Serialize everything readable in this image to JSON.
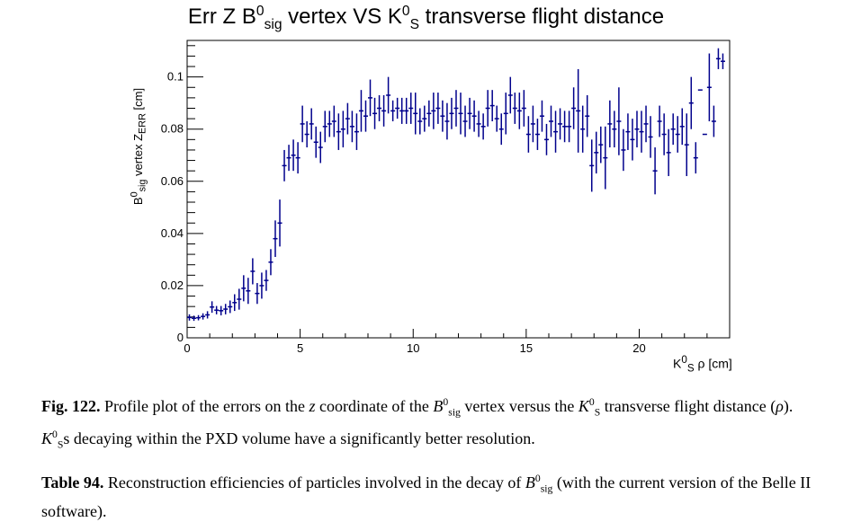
{
  "figure_caption": {
    "label": "Fig. 122.",
    "text_a": "Profile plot of the errors on the ",
    "text_b": " coordinate of the ",
    "text_c": " vertex versus the ",
    "text_d": " transverse flight distance (",
    "text_e": "). ",
    "text_f": "s decaying within the PXD volume have a significantly better resolution."
  },
  "table_caption": {
    "label": "Table 94.",
    "text_a": "Reconstruction efficiencies of particles involved in the decay of ",
    "text_b": " (with the current version of the Belle II software)."
  },
  "colors": {
    "marker": "#00008c",
    "axis": "#000000",
    "background": "#ffffff"
  },
  "chart_data": {
    "type": "scatter",
    "title": "Err Z B0sig vertex VS K0S transverse flight distance",
    "title_parts": {
      "a": "Err Z B",
      "b": "0",
      "c": "sig",
      "d": " vertex VS K",
      "e": "0",
      "f": "S",
      "g": " transverse flight distance"
    },
    "xlabel": "K0S ρ [cm]",
    "xlabel_parts": {
      "a": "K",
      "b": "0",
      "c": "S",
      "d": " ρ [cm]"
    },
    "ylabel": "B0sig vertex ZERR [cm]",
    "ylabel_parts": {
      "a": "B",
      "b": "0",
      "c": "sig",
      "d": " vertex Z",
      "e": "ERR",
      "f": " [cm]"
    },
    "xlim": [
      0,
      24
    ],
    "ylim": [
      0,
      0.114
    ],
    "x_ticks": [
      {
        "value": 0,
        "label": "0"
      },
      {
        "value": 5,
        "label": "5"
      },
      {
        "value": 10,
        "label": "10"
      },
      {
        "value": 15,
        "label": "15"
      },
      {
        "value": 20,
        "label": "20"
      }
    ],
    "y_ticks": [
      {
        "value": 0,
        "label": "0"
      },
      {
        "value": 0.02,
        "label": "0.02"
      },
      {
        "value": 0.04,
        "label": "0.04"
      },
      {
        "value": 0.06,
        "label": "0.06"
      },
      {
        "value": 0.08,
        "label": "0.08"
      },
      {
        "value": 0.1,
        "label": "0.1"
      }
    ],
    "bin_width": 0.2,
    "points": [
      {
        "x": 0.1,
        "y": 0.0078,
        "err": 0.0012
      },
      {
        "x": 0.3,
        "y": 0.0075,
        "err": 0.001
      },
      {
        "x": 0.5,
        "y": 0.0077,
        "err": 0.001
      },
      {
        "x": 0.7,
        "y": 0.0082,
        "err": 0.0012
      },
      {
        "x": 0.9,
        "y": 0.0088,
        "err": 0.0014
      },
      {
        "x": 1.1,
        "y": 0.0118,
        "err": 0.0022
      },
      {
        "x": 1.3,
        "y": 0.0106,
        "err": 0.0016
      },
      {
        "x": 1.5,
        "y": 0.0104,
        "err": 0.0018
      },
      {
        "x": 1.7,
        "y": 0.011,
        "err": 0.002
      },
      {
        "x": 1.9,
        "y": 0.0119,
        "err": 0.0024
      },
      {
        "x": 2.1,
        "y": 0.0135,
        "err": 0.0032
      },
      {
        "x": 2.3,
        "y": 0.0148,
        "err": 0.004
      },
      {
        "x": 2.5,
        "y": 0.019,
        "err": 0.005
      },
      {
        "x": 2.7,
        "y": 0.018,
        "err": 0.005
      },
      {
        "x": 2.9,
        "y": 0.0255,
        "err": 0.005
      },
      {
        "x": 3.1,
        "y": 0.017,
        "err": 0.004
      },
      {
        "x": 3.3,
        "y": 0.02,
        "err": 0.005
      },
      {
        "x": 3.5,
        "y": 0.022,
        "err": 0.004
      },
      {
        "x": 3.7,
        "y": 0.029,
        "err": 0.005
      },
      {
        "x": 3.9,
        "y": 0.038,
        "err": 0.007
      },
      {
        "x": 4.1,
        "y": 0.044,
        "err": 0.009
      },
      {
        "x": 4.3,
        "y": 0.066,
        "err": 0.006
      },
      {
        "x": 4.5,
        "y": 0.069,
        "err": 0.005
      },
      {
        "x": 4.7,
        "y": 0.07,
        "err": 0.006
      },
      {
        "x": 4.9,
        "y": 0.069,
        "err": 0.006
      },
      {
        "x": 5.1,
        "y": 0.082,
        "err": 0.007
      },
      {
        "x": 5.3,
        "y": 0.078,
        "err": 0.005
      },
      {
        "x": 5.5,
        "y": 0.082,
        "err": 0.006
      },
      {
        "x": 5.7,
        "y": 0.075,
        "err": 0.006
      },
      {
        "x": 5.9,
        "y": 0.073,
        "err": 0.006
      },
      {
        "x": 6.1,
        "y": 0.081,
        "err": 0.006
      },
      {
        "x": 6.3,
        "y": 0.082,
        "err": 0.005
      },
      {
        "x": 6.5,
        "y": 0.083,
        "err": 0.006
      },
      {
        "x": 6.7,
        "y": 0.079,
        "err": 0.007
      },
      {
        "x": 6.9,
        "y": 0.08,
        "err": 0.007
      },
      {
        "x": 7.1,
        "y": 0.084,
        "err": 0.006
      },
      {
        "x": 7.3,
        "y": 0.081,
        "err": 0.006
      },
      {
        "x": 7.5,
        "y": 0.079,
        "err": 0.007
      },
      {
        "x": 7.7,
        "y": 0.087,
        "err": 0.008
      },
      {
        "x": 7.9,
        "y": 0.085,
        "err": 0.006
      },
      {
        "x": 8.1,
        "y": 0.092,
        "err": 0.007
      },
      {
        "x": 8.3,
        "y": 0.086,
        "err": 0.006
      },
      {
        "x": 8.5,
        "y": 0.088,
        "err": 0.005
      },
      {
        "x": 8.7,
        "y": 0.087,
        "err": 0.006
      },
      {
        "x": 8.9,
        "y": 0.093,
        "err": 0.007
      },
      {
        "x": 9.1,
        "y": 0.087,
        "err": 0.004
      },
      {
        "x": 9.3,
        "y": 0.088,
        "err": 0.004
      },
      {
        "x": 9.5,
        "y": 0.087,
        "err": 0.005
      },
      {
        "x": 9.7,
        "y": 0.087,
        "err": 0.005
      },
      {
        "x": 9.9,
        "y": 0.088,
        "err": 0.006
      },
      {
        "x": 10.1,
        "y": 0.086,
        "err": 0.008
      },
      {
        "x": 10.3,
        "y": 0.083,
        "err": 0.005
      },
      {
        "x": 10.5,
        "y": 0.084,
        "err": 0.005
      },
      {
        "x": 10.7,
        "y": 0.086,
        "err": 0.005
      },
      {
        "x": 10.9,
        "y": 0.087,
        "err": 0.007
      },
      {
        "x": 11.1,
        "y": 0.088,
        "err": 0.006
      },
      {
        "x": 11.3,
        "y": 0.085,
        "err": 0.006
      },
      {
        "x": 11.5,
        "y": 0.083,
        "err": 0.007
      },
      {
        "x": 11.7,
        "y": 0.086,
        "err": 0.006
      },
      {
        "x": 11.9,
        "y": 0.088,
        "err": 0.007
      },
      {
        "x": 12.1,
        "y": 0.086,
        "err": 0.008
      },
      {
        "x": 12.3,
        "y": 0.083,
        "err": 0.006
      },
      {
        "x": 12.5,
        "y": 0.086,
        "err": 0.006
      },
      {
        "x": 12.7,
        "y": 0.085,
        "err": 0.006
      },
      {
        "x": 12.9,
        "y": 0.082,
        "err": 0.005
      },
      {
        "x": 13.1,
        "y": 0.081,
        "err": 0.005
      },
      {
        "x": 13.3,
        "y": 0.088,
        "err": 0.007
      },
      {
        "x": 13.5,
        "y": 0.089,
        "err": 0.006
      },
      {
        "x": 13.7,
        "y": 0.084,
        "err": 0.005
      },
      {
        "x": 13.9,
        "y": 0.08,
        "err": 0.006
      },
      {
        "x": 14.1,
        "y": 0.086,
        "err": 0.008
      },
      {
        "x": 14.3,
        "y": 0.093,
        "err": 0.007
      },
      {
        "x": 14.5,
        "y": 0.088,
        "err": 0.006
      },
      {
        "x": 14.7,
        "y": 0.087,
        "err": 0.007
      },
      {
        "x": 14.9,
        "y": 0.088,
        "err": 0.007
      },
      {
        "x": 15.1,
        "y": 0.078,
        "err": 0.007
      },
      {
        "x": 15.3,
        "y": 0.082,
        "err": 0.007
      },
      {
        "x": 15.5,
        "y": 0.078,
        "err": 0.006
      },
      {
        "x": 15.7,
        "y": 0.085,
        "err": 0.006
      },
      {
        "x": 15.9,
        "y": 0.076,
        "err": 0.006
      },
      {
        "x": 16.1,
        "y": 0.083,
        "err": 0.006
      },
      {
        "x": 16.3,
        "y": 0.079,
        "err": 0.008
      },
      {
        "x": 16.5,
        "y": 0.082,
        "err": 0.006
      },
      {
        "x": 16.7,
        "y": 0.081,
        "err": 0.006
      },
      {
        "x": 16.9,
        "y": 0.081,
        "err": 0.006
      },
      {
        "x": 17.1,
        "y": 0.088,
        "err": 0.008
      },
      {
        "x": 17.3,
        "y": 0.087,
        "err": 0.016
      },
      {
        "x": 17.5,
        "y": 0.08,
        "err": 0.009
      },
      {
        "x": 17.7,
        "y": 0.085,
        "err": 0.008
      },
      {
        "x": 17.9,
        "y": 0.066,
        "err": 0.01
      },
      {
        "x": 18.1,
        "y": 0.071,
        "err": 0.008
      },
      {
        "x": 18.3,
        "y": 0.074,
        "err": 0.007
      },
      {
        "x": 18.5,
        "y": 0.069,
        "err": 0.012
      },
      {
        "x": 18.7,
        "y": 0.082,
        "err": 0.009
      },
      {
        "x": 18.9,
        "y": 0.08,
        "err": 0.007
      },
      {
        "x": 19.1,
        "y": 0.083,
        "err": 0.013
      },
      {
        "x": 19.3,
        "y": 0.072,
        "err": 0.008
      },
      {
        "x": 19.5,
        "y": 0.079,
        "err": 0.007
      },
      {
        "x": 19.7,
        "y": 0.076,
        "err": 0.008
      },
      {
        "x": 19.9,
        "y": 0.08,
        "err": 0.007
      },
      {
        "x": 20.1,
        "y": 0.079,
        "err": 0.008
      },
      {
        "x": 20.3,
        "y": 0.082,
        "err": 0.007
      },
      {
        "x": 20.5,
        "y": 0.077,
        "err": 0.008
      },
      {
        "x": 20.7,
        "y": 0.064,
        "err": 0.009
      },
      {
        "x": 20.9,
        "y": 0.083,
        "err": 0.006
      },
      {
        "x": 21.1,
        "y": 0.078,
        "err": 0.008
      },
      {
        "x": 21.3,
        "y": 0.071,
        "err": 0.009
      },
      {
        "x": 21.5,
        "y": 0.08,
        "err": 0.006
      },
      {
        "x": 21.7,
        "y": 0.078,
        "err": 0.007
      },
      {
        "x": 21.9,
        "y": 0.081,
        "err": 0.007
      },
      {
        "x": 22.1,
        "y": 0.074,
        "err": 0.012
      },
      {
        "x": 22.3,
        "y": 0.09,
        "err": 0.01
      },
      {
        "x": 22.5,
        "y": 0.069,
        "err": 0.006
      },
      {
        "x": 22.7,
        "y": 0.095,
        "err": 0.0
      },
      {
        "x": 22.9,
        "y": 0.078,
        "err": 0.0
      },
      {
        "x": 23.1,
        "y": 0.096,
        "err": 0.013
      },
      {
        "x": 23.3,
        "y": 0.083,
        "err": 0.006
      },
      {
        "x": 23.5,
        "y": 0.107,
        "err": 0.004
      },
      {
        "x": 23.7,
        "y": 0.106,
        "err": 0.003
      }
    ]
  }
}
